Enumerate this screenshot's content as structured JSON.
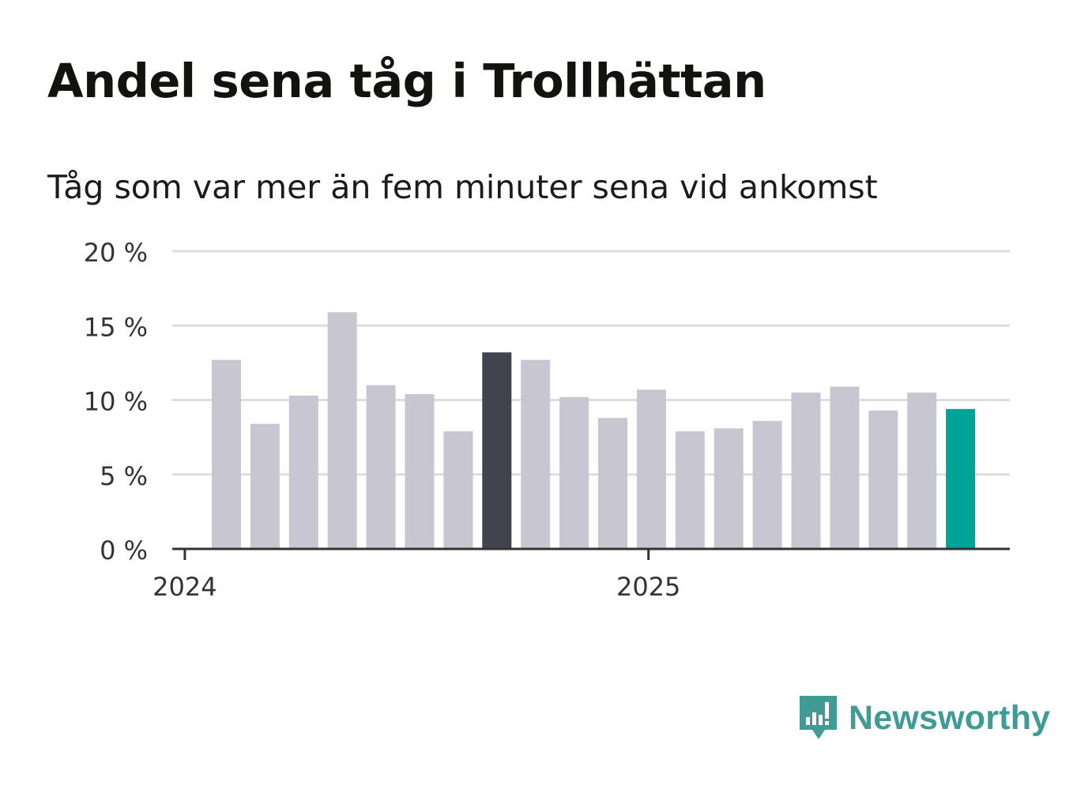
{
  "header": {
    "title": "Andel sena tåg i Trollhättan",
    "subtitle": "Tåg som var mer än fem minuter sena vid ankomst"
  },
  "brand": {
    "name": "Newsworthy",
    "color": "#3f9b93"
  },
  "colors": {
    "bar_default": "#c8c7d1",
    "bar_highlight": "#43424f",
    "bar_latest": "#00a398",
    "grid": "#dddddd",
    "axis": "#333333"
  },
  "chart_data": {
    "type": "bar",
    "title": "Andel sena tåg i Trollhättan",
    "subtitle": "Tåg som var mer än fem minuter sena vid ankomst",
    "xlabel": "",
    "ylabel": "",
    "x_tick_labels": [
      "2024",
      "2025"
    ],
    "y_ticks": [
      0,
      5,
      10,
      15,
      20
    ],
    "y_tick_labels": [
      "0 %",
      "5 %",
      "10 %",
      "15 %",
      "20 %"
    ],
    "ylim": [
      0,
      20
    ],
    "grid": true,
    "categories": [
      "2024-02",
      "2024-03",
      "2024-04",
      "2024-05",
      "2024-06",
      "2024-07",
      "2024-08",
      "2024-09",
      "2024-10",
      "2024-11",
      "2024-12",
      "2025-01",
      "2025-02",
      "2025-03",
      "2025-04",
      "2025-05",
      "2025-06",
      "2025-07",
      "2025-08",
      "2025-09"
    ],
    "values": [
      12.7,
      8.4,
      10.3,
      15.9,
      11.0,
      10.4,
      7.9,
      13.2,
      12.7,
      10.2,
      8.8,
      10.7,
      7.9,
      8.1,
      8.6,
      10.5,
      10.9,
      9.3,
      10.5,
      9.4
    ],
    "highlight_category": "2024-09",
    "latest_category": "2025-09"
  }
}
